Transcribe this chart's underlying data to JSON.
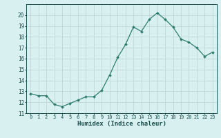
{
  "x": [
    0,
    1,
    2,
    3,
    4,
    5,
    6,
    7,
    8,
    9,
    10,
    11,
    12,
    13,
    14,
    15,
    16,
    17,
    18,
    19,
    20,
    21,
    22,
    23
  ],
  "y": [
    12.8,
    12.6,
    12.6,
    11.8,
    11.6,
    11.9,
    12.2,
    12.5,
    12.5,
    13.1,
    14.5,
    16.1,
    17.3,
    18.9,
    18.5,
    19.6,
    20.2,
    19.6,
    18.9,
    17.8,
    17.5,
    17.0,
    16.2,
    16.6
  ],
  "line_color": "#2e7d6e",
  "marker": "D",
  "marker_size": 2.0,
  "bg_color": "#d8f0ef",
  "grid_color": "#c0d8d8",
  "axis_label_color": "#1a5050",
  "tick_color": "#1a5050",
  "xlabel": "Humidex (Indice chaleur)",
  "ylim": [
    11,
    21
  ],
  "xlim": [
    -0.5,
    23.5
  ],
  "yticks": [
    11,
    12,
    13,
    14,
    15,
    16,
    17,
    18,
    19,
    20
  ],
  "xticks": [
    0,
    1,
    2,
    3,
    4,
    5,
    6,
    7,
    8,
    9,
    10,
    11,
    12,
    13,
    14,
    15,
    16,
    17,
    18,
    19,
    20,
    21,
    22,
    23
  ],
  "xtick_labels": [
    "0",
    "1",
    "2",
    "3",
    "4",
    "5",
    "6",
    "7",
    "8",
    "9",
    "10",
    "11",
    "12",
    "13",
    "14",
    "15",
    "16",
    "17",
    "18",
    "19",
    "20",
    "21",
    "22",
    "23"
  ]
}
